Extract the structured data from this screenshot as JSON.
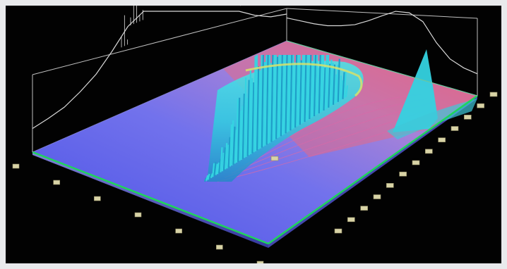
{
  "chart_data": {
    "type": "surface-3d",
    "title": "",
    "xlabel": "",
    "ylabel": "",
    "zlabel": "",
    "grid": false,
    "plane_colors": {
      "low": "#5b5ff0",
      "mid": "#a07fd6",
      "high": "#e0607e"
    },
    "surface_color": "#2fd6e0",
    "wall_trace_color": "#d8d8d8",
    "edge_color": "#1ed65a",
    "ridge_profile": [
      0.05,
      0.12,
      0.22,
      0.38,
      0.55,
      0.72,
      0.86,
      0.95,
      1.0,
      0.97,
      0.9,
      0.82,
      0.74,
      0.66,
      0.58,
      0.48,
      0.36,
      0.24,
      0.12
    ],
    "right_peak_height": 1.0,
    "left_wall_trace": [
      0.05,
      0.08,
      0.12,
      0.2,
      0.3,
      0.45,
      0.62,
      0.78,
      0.9,
      0.95,
      0.88,
      0.7,
      0.52,
      0.35,
      0.2,
      0.12,
      0.08
    ],
    "right_wall_trace": [
      0.18,
      0.2,
      0.22,
      0.26,
      0.34,
      0.44,
      0.6,
      0.78,
      0.95,
      1.0,
      0.9,
      0.55,
      0.3,
      0.2,
      0.16
    ],
    "axis_tick_labels_visible": false,
    "left_axis_tick_count": 7,
    "right_axis_tick_count": 13
  }
}
